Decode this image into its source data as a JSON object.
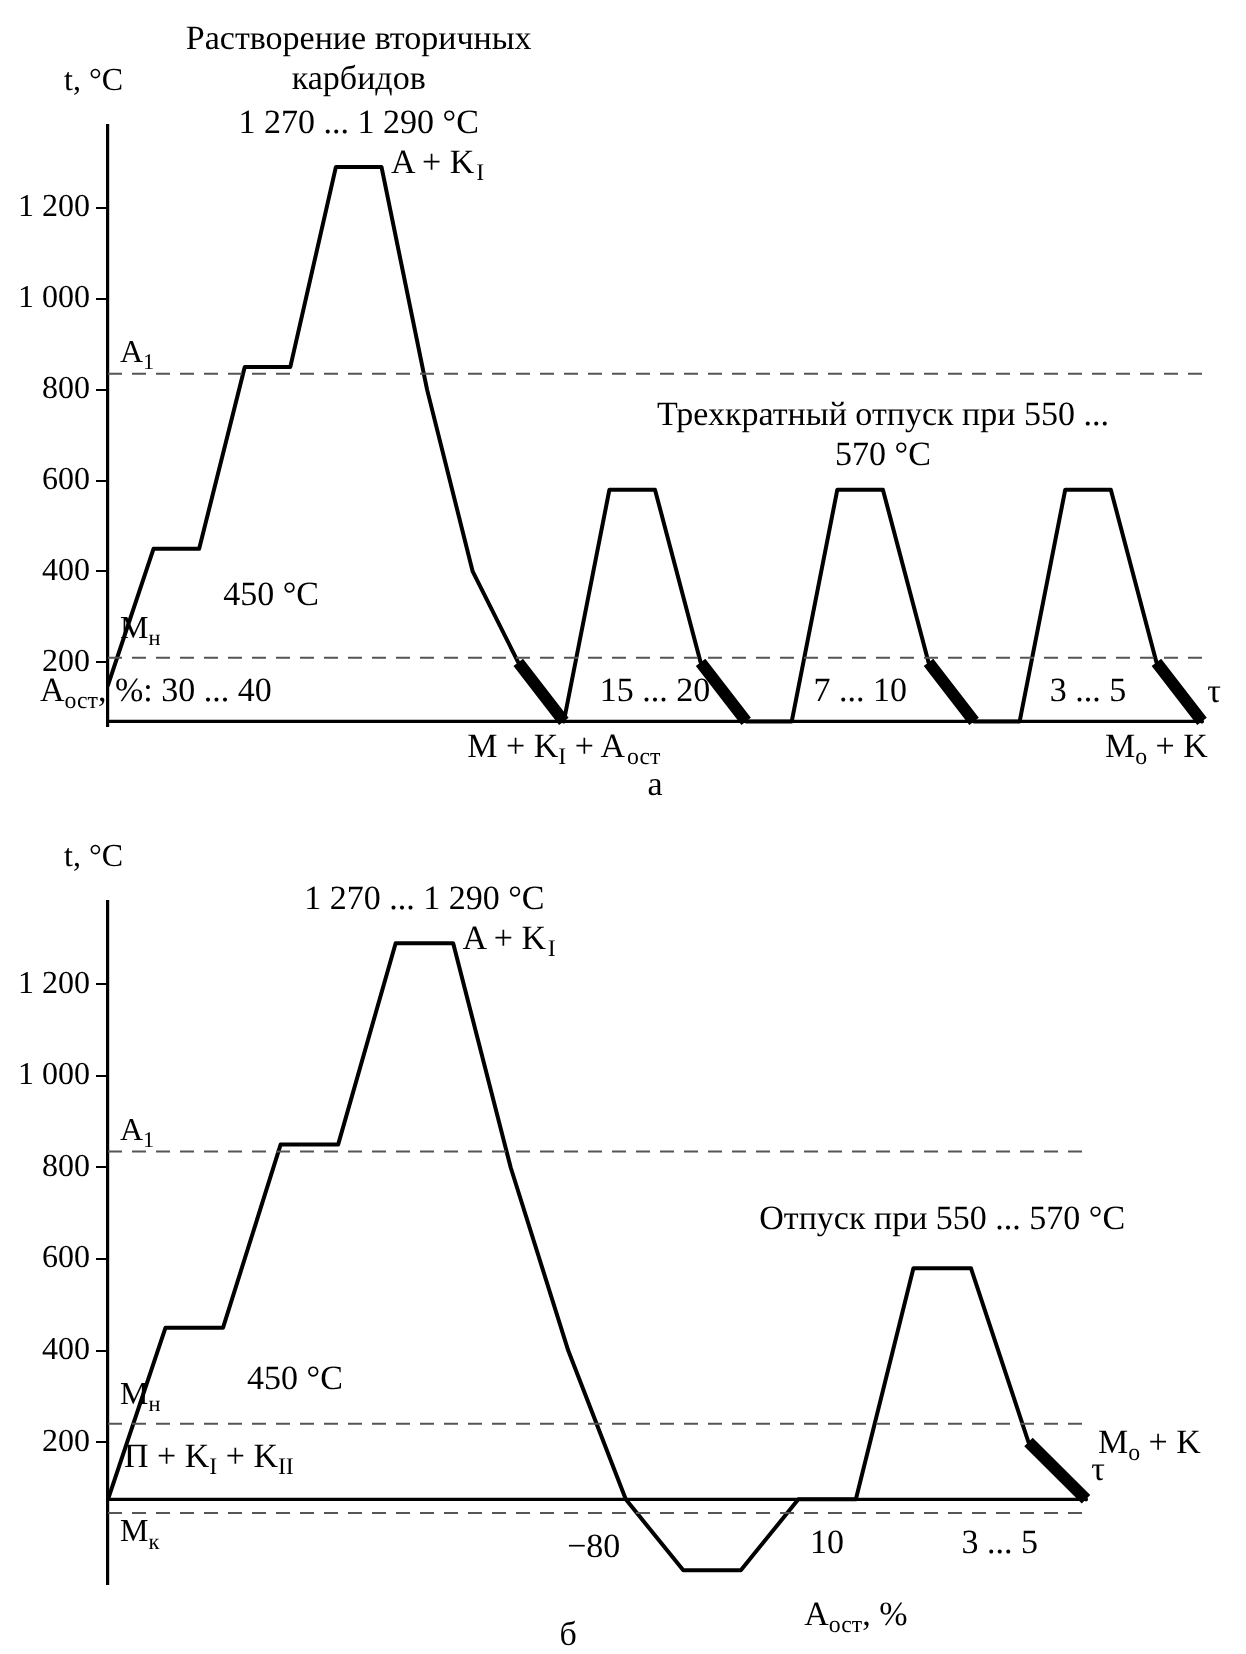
{
  "chart_data": [
    {
      "type": "line",
      "ylabel": "t, °C",
      "xlabel": "τ",
      "categories": [
        null,
        null,
        null,
        null,
        null,
        null,
        null,
        null,
        null,
        null,
        null,
        null,
        null,
        null,
        null,
        null,
        null,
        null,
        null,
        null,
        null,
        null,
        null,
        null,
        null
      ],
      "series": [
        {
          "color": "#000000",
          "values": [
            150,
            450,
            450,
            850,
            850,
            1290,
            1290,
            800,
            400,
            200,
            70,
            580,
            580,
            200,
            70,
            70,
            580,
            580,
            200,
            70,
            70,
            580,
            580,
            200,
            70
          ]
        },
        {
          "color": "#000000",
          "values": [
            null,
            null,
            null,
            null,
            null,
            null,
            null,
            null,
            null,
            200,
            70,
            null,
            null,
            200,
            70,
            null,
            null,
            null,
            200,
            70,
            null,
            null,
            null,
            200,
            70
          ]
        }
      ],
      "ylim": [
        60,
        1380
      ],
      "yticks": [
        {
          "value": 200,
          "label": "200"
        },
        {
          "value": 400,
          "label": "400"
        },
        {
          "value": 600,
          "label": "600"
        },
        {
          "value": 800,
          "label": "800"
        },
        {
          "value": 1000,
          "label": "1 000"
        },
        {
          "value": 1200,
          "label": "1 200"
        }
      ],
      "tick_labels": "y",
      "grid": false,
      "legend": false,
      "marker": "none",
      "line_style": "solid",
      "ref_lines": [
        {
          "axis": "y",
          "value": 835,
          "label": "A$_{1}$",
          "line_style": "dashed",
          "color": "#555555"
        },
        {
          "axis": "y",
          "value": 210,
          "label": "M$_{н}$",
          "line_style": "dashed",
          "color": "#555555"
        },
        {
          "axis": "y",
          "value": 70,
          "line_style": "solid",
          "color": "#000000"
        }
      ],
      "annotations": [
        "Растворение вторичных карбидов",
        "1 270 ... 1 290 °C",
        "A + K$_{I}$",
        "450 °C",
        "Трехкратный отпуск при 550 ... 570 °C",
        "A$_{ост}$, %: 30 ... 40",
        "15 ... 20",
        "7 ... 10",
        "3 ... 5",
        "M + K$_{I}$ + A$_{ост}$",
        "M$_{о}$ + K",
        "а"
      ]
    },
    {
      "type": "line",
      "ylabel": "t, °C",
      "xlabel": "τ",
      "categories": [
        null,
        null,
        null,
        null,
        null,
        null,
        null,
        null,
        null,
        null,
        null,
        null,
        null,
        null,
        null,
        null,
        null,
        null
      ],
      "series": [
        {
          "color": "#000000",
          "values": [
            75,
            450,
            450,
            850,
            850,
            1290,
            1290,
            800,
            400,
            75,
            -80,
            -80,
            75,
            75,
            580,
            580,
            200,
            75
          ]
        },
        {
          "color": "#000000",
          "values": [
            null,
            null,
            null,
            null,
            null,
            null,
            null,
            null,
            null,
            null,
            null,
            null,
            null,
            null,
            null,
            null,
            200,
            75
          ]
        }
      ],
      "ylim": [
        -110,
        1380
      ],
      "yticks": [
        {
          "value": 200,
          "label": "200"
        },
        {
          "value": 400,
          "label": "400"
        },
        {
          "value": 600,
          "label": "600"
        },
        {
          "value": 800,
          "label": "800"
        },
        {
          "value": 1000,
          "label": "1 000"
        },
        {
          "value": 1200,
          "label": "1 200"
        }
      ],
      "tick_labels": "y",
      "grid": false,
      "legend": false,
      "marker": "none",
      "line_style": "solid",
      "ref_lines": [
        {
          "axis": "y",
          "value": 835,
          "label": "A$_{1}$",
          "line_style": "dashed",
          "color": "#555555"
        },
        {
          "axis": "y",
          "value": 240,
          "label": "M$_{н}$",
          "line_style": "dashed",
          "color": "#555555"
        },
        {
          "axis": "y",
          "value": 45,
          "label": "M$_{к}$",
          "line_style": "dashed",
          "color": "#555555"
        },
        {
          "axis": "y",
          "value": 75,
          "line_style": "solid",
          "color": "#000000"
        }
      ],
      "annotations": [
        "1 270 ... 1 290 °C",
        "A + K$_{I}$",
        "450 °C",
        "Отпуск при 550 ... 570 °C",
        "П + K$_{I}$ + K$_{II}$",
        "−80",
        "10",
        "A$_{ост}$, %",
        "3 ... 5",
        "M$_{о}$ + K",
        "б"
      ]
    }
  ]
}
